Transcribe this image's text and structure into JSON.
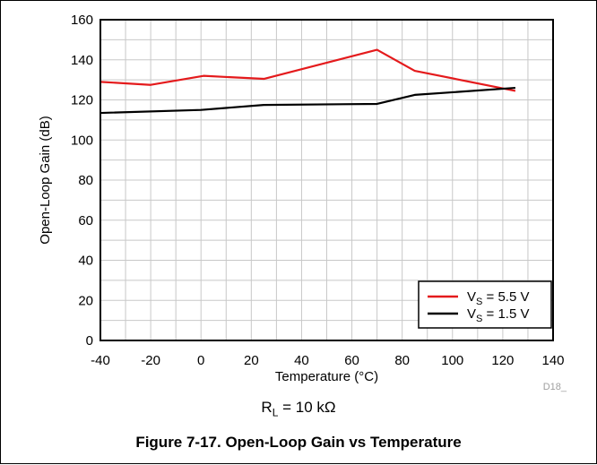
{
  "chart_data": {
    "type": "line",
    "xlabel": "Temperature (°C)",
    "ylabel": "Open-Loop Gain (dB)",
    "xlim": [
      -40,
      140
    ],
    "ylim": [
      0,
      160
    ],
    "x_ticks": [
      "-40",
      "-20",
      "0",
      "20",
      "40",
      "60",
      "80",
      "100",
      "120",
      "140"
    ],
    "y_ticks": [
      "0",
      "20",
      "40",
      "60",
      "80",
      "100",
      "120",
      "140",
      "160"
    ],
    "grid": true,
    "legend_position": "bottom-right",
    "series": [
      {
        "name": "VS = 5.5 V",
        "name_main": "V",
        "name_sub": "S",
        "name_rest": " = 5.5 V",
        "color": "#e41a1c",
        "x": [
          -40,
          -20,
          1,
          25,
          70,
          85,
          125
        ],
        "y": [
          129,
          127.5,
          132,
          130.5,
          145,
          134.5,
          124.5
        ]
      },
      {
        "name": "VS = 1.5 V",
        "name_main": "V",
        "name_sub": "S",
        "name_rest": " = 1.5 V",
        "color": "#000000",
        "x": [
          -40,
          0,
          25,
          70,
          85,
          125
        ],
        "y": [
          113.5,
          115,
          117.5,
          118,
          122.5,
          126
        ]
      }
    ],
    "figure_code": "D18_"
  },
  "condition": {
    "prefix": "R",
    "sub": "L",
    "rest": " = 10 kΩ"
  },
  "caption": "Figure 7-17. Open-Loop Gain vs Temperature"
}
